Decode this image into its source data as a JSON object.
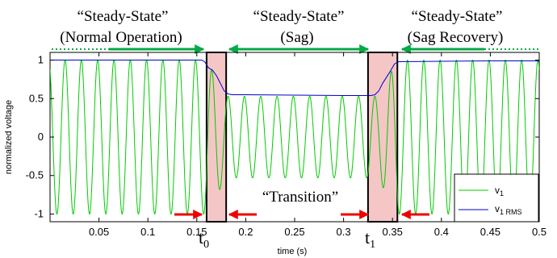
{
  "chart_data": {
    "type": "line",
    "title": "",
    "xlabel": "time (s)",
    "ylabel": "normalized voltage",
    "xlim": [
      0,
      0.5
    ],
    "ylim": [
      -1.1,
      1.1
    ],
    "grid": false,
    "legend_position": "bottom-right",
    "x_ticks": [
      0.05,
      0.1,
      0.15,
      0.2,
      0.25,
      0.3,
      0.35,
      0.4,
      0.45,
      0.5
    ],
    "y_ticks": [
      1,
      0.5,
      0,
      -0.5,
      -1
    ],
    "series": [
      {
        "name": "v",
        "name_subscript": "1",
        "color": "#00cc00",
        "signal": {
          "frequency_hz": 60,
          "pre_amplitude": 1.0,
          "sag_amplitude": 0.53,
          "post_amplitude": 1.0,
          "sag_start": 0.16,
          "sag_end": 0.335
        }
      },
      {
        "name": "v",
        "name_subscript": "1 RMS",
        "color": "#0000cc",
        "points": [
          [
            0.0,
            1.0
          ],
          [
            0.155,
            1.0
          ],
          [
            0.158,
            0.98
          ],
          [
            0.162,
            0.9
          ],
          [
            0.166,
            0.87
          ],
          [
            0.17,
            0.8
          ],
          [
            0.174,
            0.7
          ],
          [
            0.178,
            0.6
          ],
          [
            0.182,
            0.56
          ],
          [
            0.186,
            0.55
          ],
          [
            0.2,
            0.55
          ],
          [
            0.25,
            0.545
          ],
          [
            0.3,
            0.54
          ],
          [
            0.328,
            0.54
          ],
          [
            0.332,
            0.55
          ],
          [
            0.336,
            0.6
          ],
          [
            0.34,
            0.7
          ],
          [
            0.344,
            0.78
          ],
          [
            0.348,
            0.86
          ],
          [
            0.352,
            0.95
          ],
          [
            0.356,
            0.98
          ],
          [
            0.4,
            0.985
          ],
          [
            0.45,
            0.99
          ],
          [
            0.5,
            0.99
          ]
        ]
      }
    ],
    "transition_regions": [
      [
        0.16,
        0.18
      ],
      [
        0.325,
        0.355
      ]
    ],
    "region_labels": [
      {
        "line1": "“Steady-State”",
        "line2": "(Normal Operation)"
      },
      {
        "line1": "“Steady-State”",
        "line2": "(Sag)"
      },
      {
        "line1": "“Steady-State”",
        "line2": "(Sag Recovery)"
      }
    ],
    "transition_label": "“Transition”",
    "marker_labels": [
      {
        "base": "t",
        "sub": "0",
        "at": 0.16
      },
      {
        "base": "t",
        "sub": "1",
        "at": 0.325
      }
    ],
    "colors": {
      "region_fill": "#f5c6c6",
      "region_edge": "#000000",
      "arrow_green": "#00aa44",
      "arrow_red": "#ee0000"
    }
  }
}
